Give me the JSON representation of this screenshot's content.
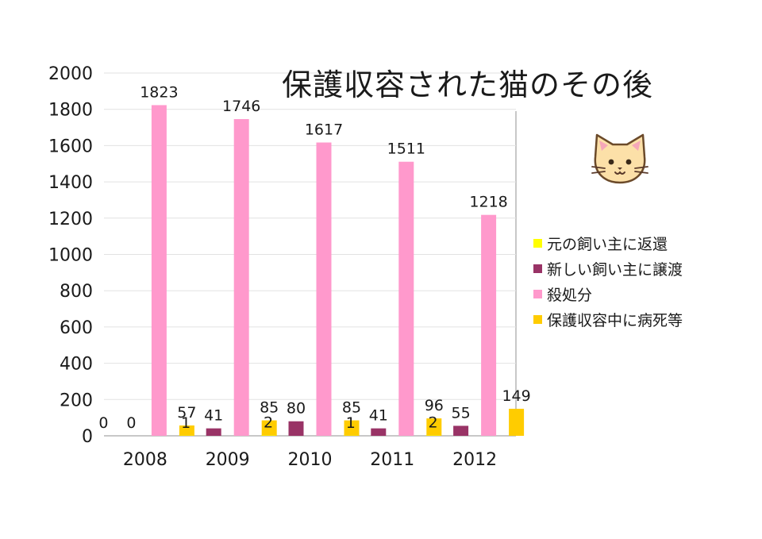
{
  "chart_data": {
    "type": "bar",
    "title": "保護収容された猫のその後",
    "categories": [
      "2008",
      "2009",
      "2010",
      "2011",
      "2012"
    ],
    "series": [
      {
        "name": "元の飼い主に返還",
        "color": "#FFFF00",
        "values": [
          0,
          1,
          2,
          1,
          2
        ]
      },
      {
        "name": "新しい飼い主に譲渡",
        "color": "#993366",
        "values": [
          0,
          41,
          80,
          41,
          55
        ]
      },
      {
        "name": "殺処分",
        "color": "#FF99CC",
        "values": [
          1823,
          1746,
          1617,
          1511,
          1218
        ]
      },
      {
        "name": "保護収容中に病死等",
        "color": "#FFCC00",
        "values": [
          57,
          85,
          85,
          96,
          149
        ]
      }
    ],
    "ylim": [
      0,
      2000
    ],
    "yticks": [
      0,
      200,
      400,
      600,
      800,
      1000,
      1200,
      1400,
      1600,
      1800,
      2000
    ],
    "grid": true,
    "legend_position": "right"
  },
  "decoration": {
    "icon": "cat-face-icon"
  }
}
